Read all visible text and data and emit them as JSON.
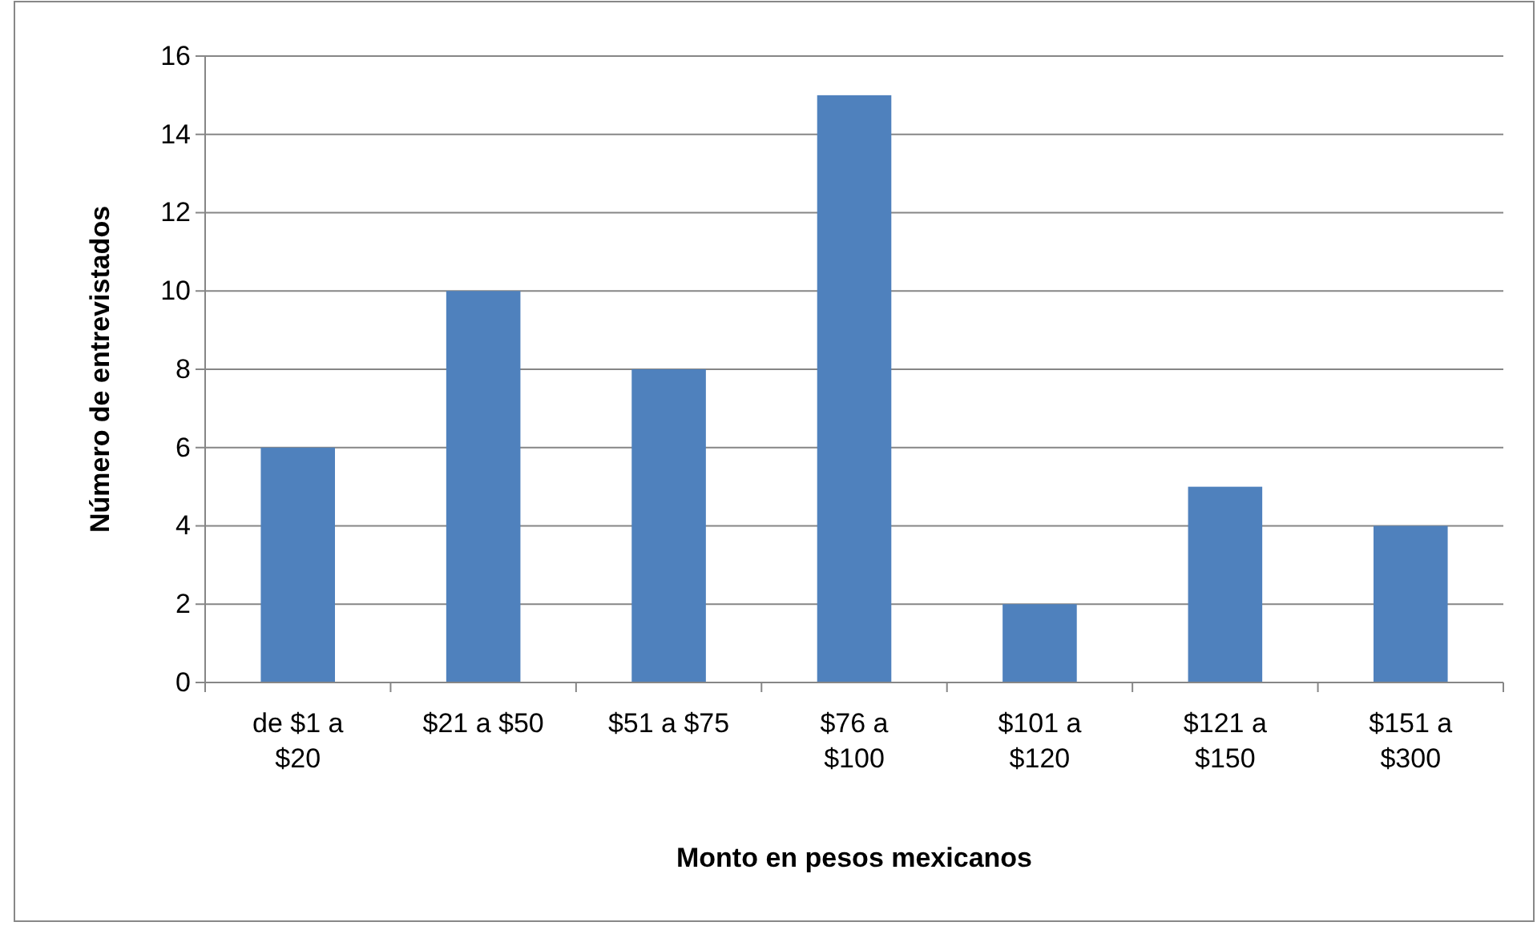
{
  "chart_data": {
    "type": "bar",
    "xlabel": "Monto en pesos mexicanos",
    "ylabel": "Número de entrevistados",
    "categories": [
      "de $1 a $20",
      "$21 a $50",
      "$51 a $75",
      "$76 a $100",
      "$101 a $120",
      "$121 a $150",
      "$151 a $300"
    ],
    "values": [
      6,
      10,
      8,
      15,
      2,
      5,
      4
    ],
    "color": "#4f81bd",
    "ylim": [
      0,
      16
    ],
    "yticks": [
      0,
      2,
      4,
      6,
      8,
      10,
      12,
      14,
      16
    ],
    "grid": "y"
  }
}
